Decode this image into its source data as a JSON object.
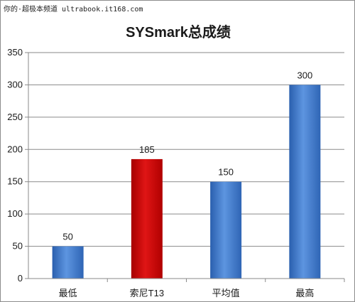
{
  "watermark": "你的·超极本频道 ultrabook.it168.com",
  "chart_data": {
    "type": "bar",
    "title": "SYSmark总成绩",
    "categories": [
      "最低",
      "索尼T13",
      "平均值",
      "最高"
    ],
    "values": [
      50,
      185,
      150,
      300
    ],
    "colors": [
      "#3e78c9",
      "#cc0a0a",
      "#3e78c9",
      "#3e78c9"
    ],
    "ylim": [
      0,
      350
    ],
    "yticks": [
      "0",
      "50",
      "100",
      "150",
      "200",
      "250",
      "300",
      "350"
    ],
    "grid": true,
    "legend": "none",
    "xlabel": "",
    "ylabel": ""
  }
}
